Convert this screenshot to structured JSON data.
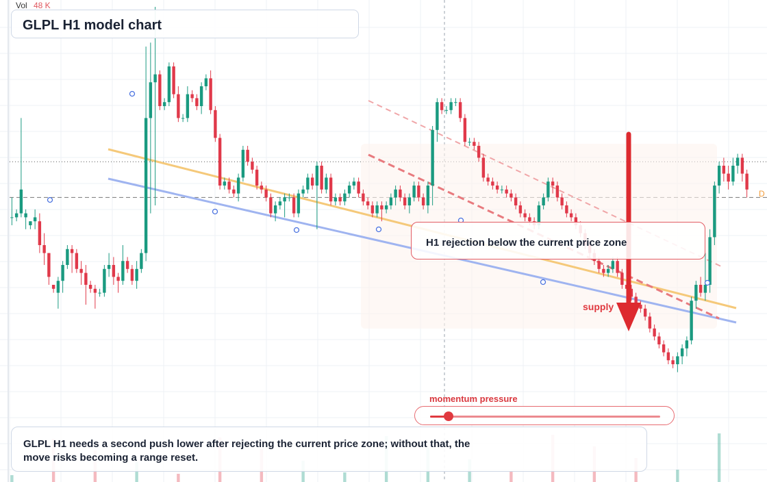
{
  "header": {
    "vol_label": "Vol",
    "vol_value": "48 K"
  },
  "title": "GLPL H1 model chart",
  "annotation": "H1 rejection below the current price zone",
  "supply_label": "supply",
  "momentum": {
    "label": "momentum pressure",
    "level": 0.08
  },
  "summary": "GLPL H1 needs a second push lower after rejecting the current price zone; without that, the move risks becoming a range reset.",
  "edge_tag": "D",
  "colors": {
    "up": "#1a9a80",
    "down": "#e0394a",
    "trend_orange": "#f5c97a",
    "trend_blue": "#9fb4f0",
    "arrow": "#dd2a2f"
  },
  "chart_data": {
    "type": "candlestick",
    "title": "GLPL H1 model chart",
    "ylim": [
      0,
      100
    ],
    "reference_lines": {
      "dotted_price": 61,
      "dashed_price": 52
    },
    "candles": [
      [
        47,
        47,
        45,
        52
      ],
      [
        47,
        48,
        46,
        49
      ],
      [
        48,
        54,
        47,
        72
      ],
      [
        47,
        48,
        44,
        49
      ],
      [
        45,
        46,
        44,
        46
      ],
      [
        46,
        47,
        44,
        49
      ],
      [
        46,
        40,
        38,
        48
      ],
      [
        40,
        38,
        35,
        43
      ],
      [
        38,
        32,
        30,
        38
      ],
      [
        30,
        29,
        28,
        30
      ],
      [
        28,
        31,
        24,
        32
      ],
      [
        31,
        35,
        28,
        36
      ],
      [
        35,
        39,
        34,
        40
      ],
      [
        39,
        38,
        33,
        40
      ],
      [
        38,
        34,
        33,
        39
      ],
      [
        34,
        33,
        30,
        36
      ],
      [
        33,
        30,
        25,
        35
      ],
      [
        30,
        29,
        28,
        31
      ],
      [
        29,
        28,
        24,
        30
      ],
      [
        28,
        28,
        27,
        29
      ],
      [
        28,
        34,
        27,
        35
      ],
      [
        34,
        35,
        32,
        38
      ],
      [
        35,
        32,
        30,
        37
      ],
      [
        32,
        31,
        28,
        33
      ],
      [
        31,
        36,
        30,
        40
      ],
      [
        36,
        34,
        33,
        37
      ],
      [
        34,
        31,
        30,
        35
      ],
      [
        31,
        34,
        29,
        36
      ],
      [
        34,
        38,
        33,
        39
      ],
      [
        38,
        72,
        36,
        90
      ],
      [
        72,
        81,
        48,
        91
      ],
      [
        81,
        83,
        50,
        100
      ],
      [
        83,
        75,
        74,
        84
      ],
      [
        75,
        76,
        74,
        77
      ],
      [
        76,
        85,
        75,
        86
      ],
      [
        85,
        78,
        77,
        86
      ],
      [
        78,
        72,
        71,
        80
      ],
      [
        72,
        72,
        71,
        73
      ],
      [
        72,
        78,
        71,
        80
      ],
      [
        78,
        77,
        76,
        79
      ],
      [
        77,
        75,
        74,
        78
      ],
      [
        75,
        80,
        73,
        81
      ],
      [
        80,
        82,
        79,
        83
      ],
      [
        82,
        74,
        73,
        84
      ],
      [
        74,
        67,
        66,
        75
      ],
      [
        67,
        55,
        54,
        68
      ],
      [
        55,
        56,
        54,
        57
      ],
      [
        56,
        54,
        53,
        57
      ],
      [
        54,
        53,
        52,
        55
      ],
      [
        53,
        57,
        51,
        58
      ],
      [
        57,
        64,
        56,
        65
      ],
      [
        64,
        61,
        60,
        65
      ],
      [
        61,
        59,
        58,
        62
      ],
      [
        59,
        55,
        54,
        60
      ],
      [
        55,
        54,
        53,
        56
      ],
      [
        54,
        52,
        51,
        55
      ],
      [
        52,
        48,
        47,
        53
      ],
      [
        48,
        50,
        46,
        51
      ],
      [
        50,
        51,
        49,
        52
      ],
      [
        51,
        52,
        47,
        53
      ],
      [
        52,
        52,
        51,
        53
      ],
      [
        52,
        48,
        47,
        53
      ],
      [
        48,
        53,
        47,
        54
      ],
      [
        53,
        54,
        52,
        55
      ],
      [
        54,
        57,
        53,
        58
      ],
      [
        57,
        55,
        54,
        58
      ],
      [
        55,
        60,
        44,
        61
      ],
      [
        60,
        54,
        53,
        61
      ],
      [
        54,
        57,
        53,
        58
      ],
      [
        57,
        51,
        50,
        58
      ],
      [
        51,
        52,
        50,
        53
      ],
      [
        52,
        51,
        50,
        53
      ],
      [
        51,
        53,
        50,
        54
      ],
      [
        53,
        55,
        52,
        56
      ],
      [
        55,
        56,
        54,
        57
      ],
      [
        56,
        53,
        52,
        57
      ],
      [
        53,
        51,
        50,
        54
      ],
      [
        51,
        50,
        49,
        52
      ],
      [
        50,
        48,
        47,
        51
      ],
      [
        48,
        50,
        47,
        51
      ],
      [
        50,
        49,
        46,
        51
      ],
      [
        49,
        50,
        48,
        51
      ],
      [
        50,
        52,
        49,
        53
      ],
      [
        52,
        54,
        50,
        55
      ],
      [
        54,
        52,
        51,
        55
      ],
      [
        52,
        50,
        49,
        53
      ],
      [
        50,
        52,
        48,
        53
      ],
      [
        52,
        55,
        51,
        56
      ],
      [
        55,
        52,
        51,
        56
      ],
      [
        52,
        50,
        49,
        53
      ],
      [
        50,
        55,
        48,
        56
      ],
      [
        55,
        69,
        50,
        70
      ],
      [
        69,
        76,
        66,
        77
      ],
      [
        76,
        74,
        73,
        77
      ],
      [
        74,
        74,
        73,
        75
      ],
      [
        74,
        76,
        73,
        77
      ],
      [
        76,
        76,
        75,
        77
      ],
      [
        76,
        72,
        71,
        77
      ],
      [
        72,
        66,
        65,
        73
      ],
      [
        66,
        66,
        65,
        67
      ],
      [
        66,
        65,
        64,
        67
      ],
      [
        65,
        62,
        61,
        66
      ],
      [
        62,
        57,
        56,
        63
      ],
      [
        57,
        56,
        55,
        58
      ],
      [
        56,
        55,
        54,
        57
      ],
      [
        55,
        54,
        53,
        56
      ],
      [
        54,
        54,
        53,
        55
      ],
      [
        54,
        53,
        52,
        55
      ],
      [
        53,
        52,
        51,
        54
      ],
      [
        52,
        50,
        49,
        53
      ],
      [
        50,
        48,
        47,
        51
      ],
      [
        48,
        47,
        46,
        49
      ],
      [
        47,
        46,
        45,
        48
      ],
      [
        46,
        45,
        44,
        47
      ],
      [
        45,
        50,
        44,
        51
      ],
      [
        50,
        52,
        49,
        53
      ],
      [
        52,
        56,
        51,
        57
      ],
      [
        56,
        55,
        53,
        57
      ],
      [
        55,
        52,
        51,
        56
      ],
      [
        52,
        50,
        49,
        53
      ],
      [
        50,
        48,
        47,
        51
      ],
      [
        48,
        47,
        46,
        49
      ],
      [
        47,
        45,
        44,
        48
      ],
      [
        45,
        43,
        42,
        46
      ],
      [
        43,
        40,
        39,
        44
      ],
      [
        40,
        38,
        37,
        41
      ],
      [
        38,
        36,
        35,
        39
      ],
      [
        36,
        34,
        33,
        37
      ],
      [
        34,
        33,
        32,
        35
      ],
      [
        33,
        34,
        32,
        35
      ],
      [
        34,
        36,
        33,
        37
      ],
      [
        36,
        33,
        32,
        37
      ],
      [
        33,
        30,
        29,
        34
      ],
      [
        30,
        29,
        28,
        31
      ],
      [
        29,
        27,
        26,
        30
      ],
      [
        27,
        25,
        24,
        28
      ],
      [
        25,
        24,
        23,
        26
      ],
      [
        24,
        22,
        21,
        25
      ],
      [
        22,
        19,
        18,
        23
      ],
      [
        19,
        17,
        16,
        20
      ],
      [
        17,
        15,
        14,
        18
      ],
      [
        15,
        13,
        12,
        16
      ],
      [
        13,
        11,
        10,
        14
      ],
      [
        11,
        10,
        9,
        12
      ],
      [
        10,
        12,
        8,
        13
      ],
      [
        12,
        14,
        10,
        15
      ],
      [
        14,
        16,
        12,
        17
      ],
      [
        16,
        26,
        15,
        27
      ],
      [
        26,
        30,
        24,
        31
      ],
      [
        30,
        28,
        27,
        32
      ],
      [
        28,
        30,
        26,
        38
      ],
      [
        30,
        42,
        28,
        44
      ],
      [
        42,
        55,
        40,
        56
      ],
      [
        55,
        60,
        53,
        61
      ],
      [
        60,
        58,
        56,
        62
      ],
      [
        58,
        56,
        54,
        60
      ],
      [
        56,
        60,
        55,
        62
      ],
      [
        60,
        62,
        58,
        63
      ],
      [
        62,
        58,
        56,
        63
      ],
      [
        58,
        54,
        52,
        59
      ]
    ]
  }
}
